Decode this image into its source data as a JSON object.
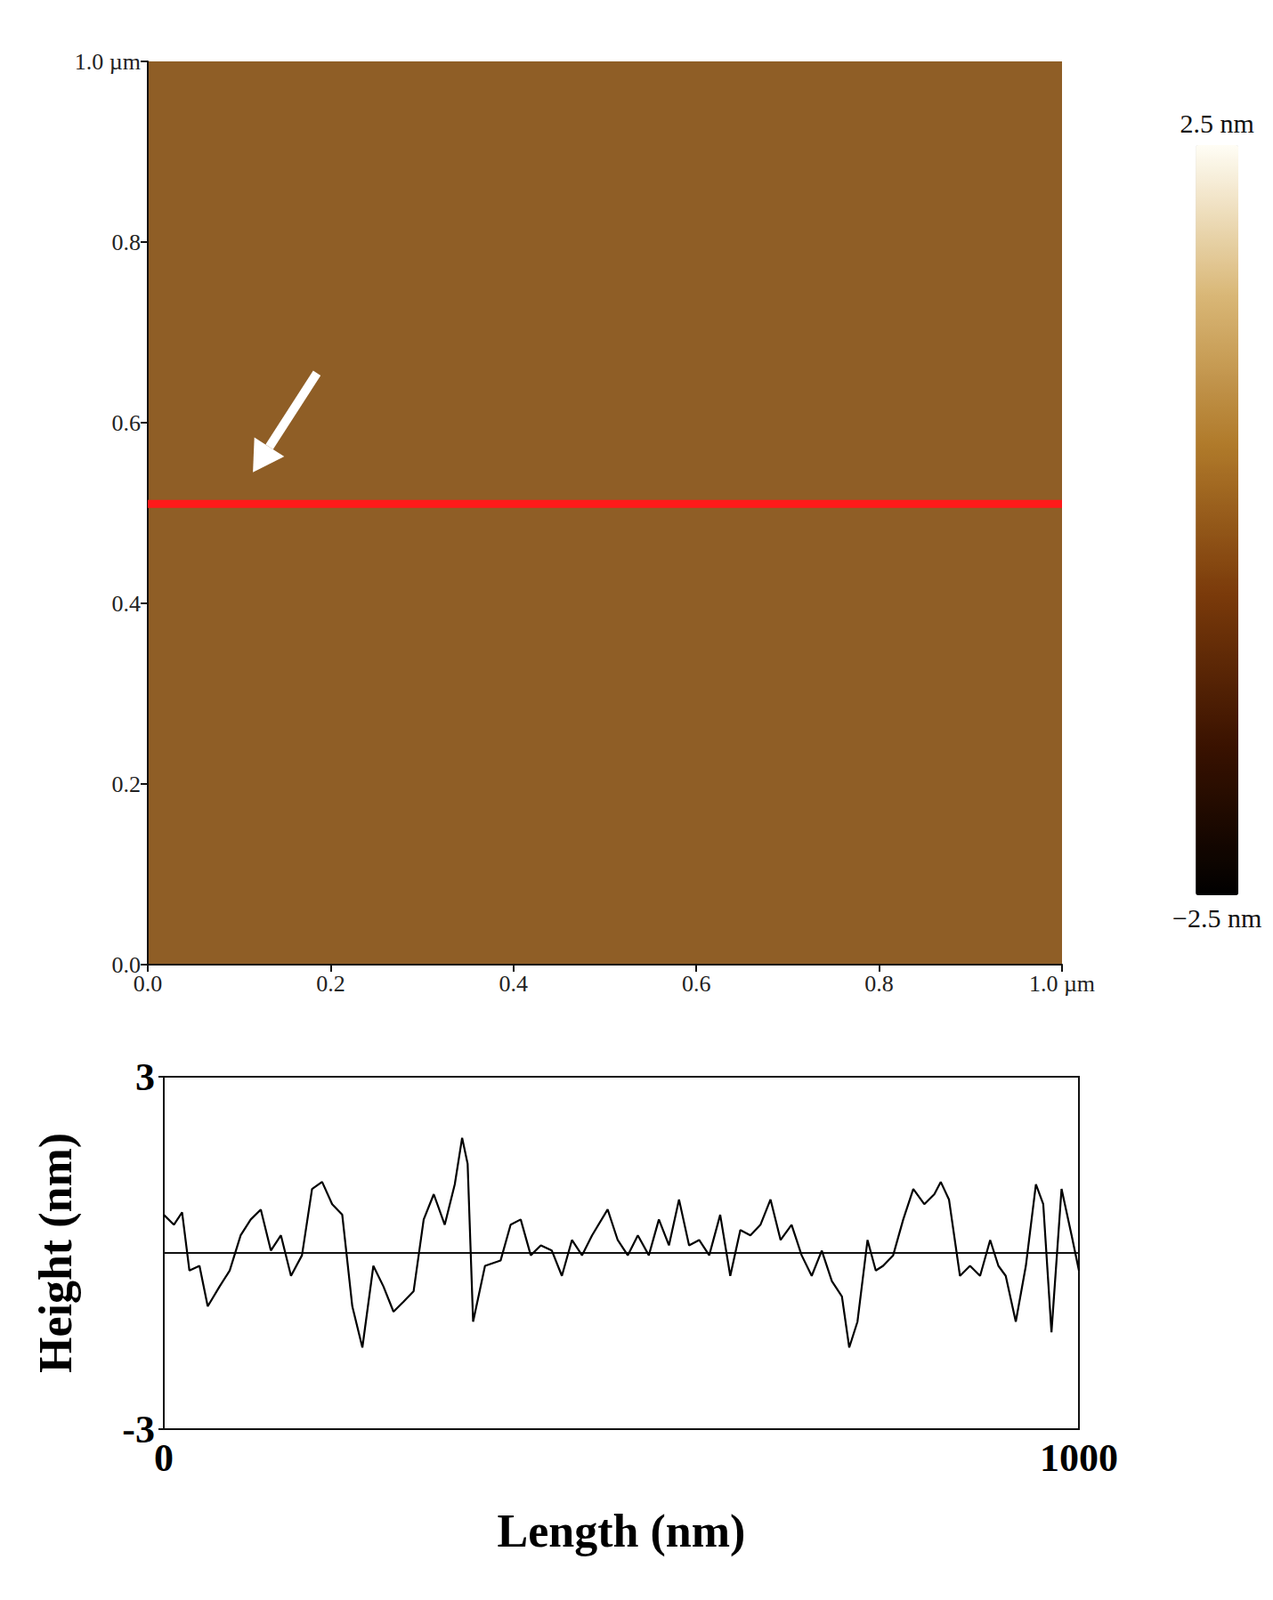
{
  "chart_data": [
    {
      "type": "afm_image",
      "xlim": [
        0,
        1
      ],
      "ylim": [
        0,
        1
      ],
      "xticks": [
        {
          "value": 0,
          "label": "0.0"
        },
        0.2,
        0.4,
        0.6,
        0.8,
        {
          "value": 1,
          "label": "1.0 µm"
        }
      ],
      "yticks": [
        {
          "value": 0,
          "label": "0.0"
        },
        0.2,
        0.4,
        0.6,
        0.8,
        {
          "value": 1,
          "label": "1.0 µm"
        }
      ],
      "series": [
        {
          "type": "line",
          "color": "#ff1a1a",
          "x": [
            0,
            1
          ],
          "values": [
            0.51,
            0.51
          ]
        }
      ],
      "colorbar": {
        "range": [
          -2.5,
          2.5
        ],
        "ticks": [
          {
            "value": -2.5,
            "label": "−2.5 nm"
          },
          {
            "value": 2.5,
            "label": "2.5 nm"
          }
        ]
      }
    },
    {
      "type": "line",
      "x_label": "Length (nm)",
      "y_label": "Height (nm)",
      "xlim": [
        0,
        1000
      ],
      "ylim": [
        -3,
        3
      ],
      "xticks": [
        0,
        1000
      ],
      "yticks": [
        -3,
        3
      ],
      "color": "#000000",
      "x": [
        0,
        11,
        20,
        28,
        39,
        48,
        61,
        72,
        84,
        95,
        106,
        117,
        128,
        139,
        151,
        162,
        173,
        184,
        195,
        206,
        217,
        229,
        240,
        251,
        262,
        273,
        284,
        295,
        307,
        318,
        326,
        332,
        338,
        351,
        368,
        379,
        390,
        401,
        412,
        424,
        435,
        446,
        457,
        468,
        485,
        496,
        507,
        518,
        530,
        541,
        552,
        563,
        574,
        585,
        596,
        608,
        619,
        630,
        641,
        652,
        663,
        674,
        686,
        697,
        708,
        719,
        730,
        741,
        749,
        758,
        769,
        778,
        786,
        797,
        808,
        819,
        831,
        842,
        849,
        858,
        870,
        881,
        892,
        903,
        912,
        920,
        931,
        942,
        953,
        961,
        970,
        981,
        992,
        1000
      ],
      "values": [
        0.65,
        0.48,
        0.69,
        -0.3,
        -0.22,
        -0.91,
        -0.57,
        -0.3,
        0.3,
        0.57,
        0.74,
        0.04,
        0.3,
        -0.39,
        -0.04,
        1.09,
        1.21,
        0.83,
        0.65,
        -0.91,
        -1.61,
        -0.22,
        -0.57,
        -1.0,
        -0.83,
        -0.65,
        0.57,
        1.0,
        0.48,
        1.17,
        1.96,
        1.52,
        -1.17,
        -0.22,
        -0.13,
        0.48,
        0.57,
        -0.04,
        0.13,
        0.04,
        -0.39,
        0.22,
        -0.04,
        0.3,
        0.74,
        0.22,
        -0.04,
        0.3,
        -0.04,
        0.57,
        0.13,
        0.91,
        0.13,
        0.22,
        -0.04,
        0.65,
        -0.39,
        0.39,
        0.3,
        0.48,
        0.91,
        0.22,
        0.48,
        -0.04,
        -0.39,
        0.04,
        -0.48,
        -0.74,
        -1.61,
        -1.17,
        0.22,
        -0.3,
        -0.22,
        -0.04,
        0.57,
        1.09,
        0.83,
        1.0,
        1.21,
        0.91,
        -0.39,
        -0.22,
        -0.39,
        0.22,
        -0.22,
        -0.39,
        -1.17,
        -0.22,
        1.17,
        0.83,
        -1.35,
        1.09,
        0.3,
        -0.3
      ]
    }
  ]
}
